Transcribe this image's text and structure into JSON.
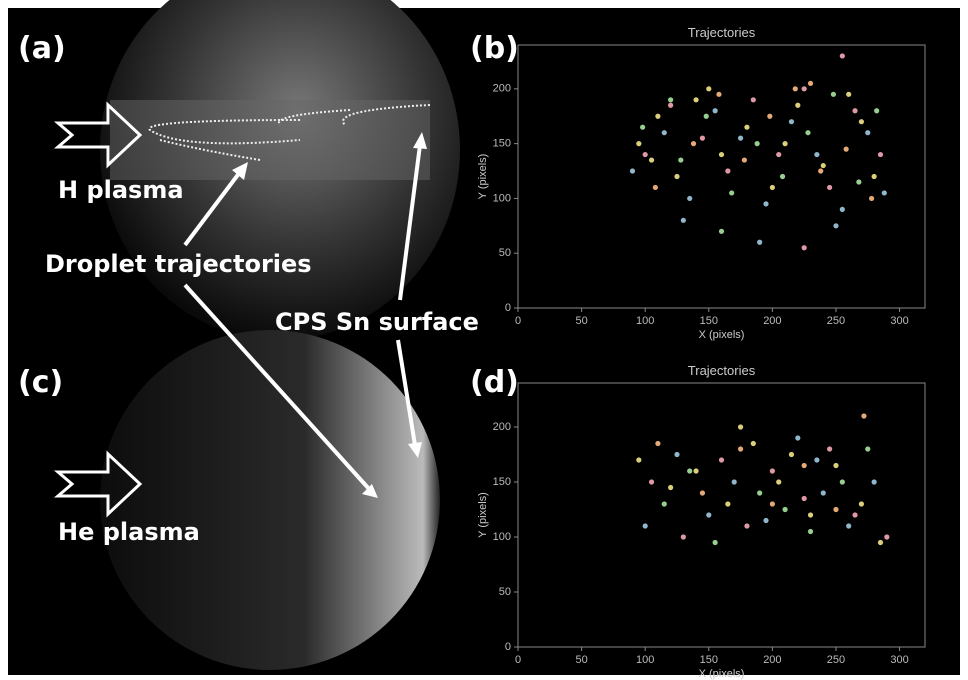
{
  "labels": {
    "a": "(a)",
    "b": "(b)",
    "c": "(c)",
    "d": "(d)",
    "h_plasma": "H plasma",
    "he_plasma": "He plasma",
    "droplet": "Droplet trajectories",
    "cps": "CPS Sn surface"
  },
  "chart_data": [
    {
      "type": "scatter",
      "title": "Trajectories",
      "x_label": "X (pixels)",
      "y_label": "Y (pixels)",
      "xlim": [
        0,
        320
      ],
      "ylim": [
        0,
        240
      ],
      "xticks": [
        0,
        50,
        100,
        150,
        200,
        250,
        300
      ],
      "yticks": [
        0,
        50,
        100,
        150,
        200
      ],
      "series": [
        {
          "color": "#f4e58a",
          "x": [
            95,
            110,
            125,
            140,
            160,
            180,
            200,
            220,
            240,
            260,
            280,
            105,
            150,
            210,
            270
          ],
          "y": [
            150,
            175,
            120,
            190,
            140,
            165,
            110,
            185,
            130,
            195,
            120,
            135,
            200,
            150,
            170
          ]
        },
        {
          "color": "#9ecae1",
          "x": [
            90,
            115,
            135,
            155,
            175,
            195,
            215,
            235,
            255,
            275,
            288,
            130,
            190,
            250
          ],
          "y": [
            125,
            160,
            100,
            180,
            155,
            95,
            170,
            140,
            90,
            160,
            105,
            80,
            60,
            75
          ]
        },
        {
          "color": "#f7a8b8",
          "x": [
            100,
            120,
            145,
            165,
            185,
            205,
            225,
            245,
            265,
            285,
            225,
            255
          ],
          "y": [
            140,
            185,
            155,
            125,
            190,
            140,
            200,
            110,
            180,
            140,
            55,
            230
          ]
        },
        {
          "color": "#a8e6a1",
          "x": [
            98,
            128,
            148,
            168,
            188,
            208,
            228,
            248,
            268,
            282,
            160,
            120
          ],
          "y": [
            165,
            135,
            175,
            105,
            150,
            120,
            160,
            195,
            115,
            180,
            70,
            190
          ]
        },
        {
          "color": "#fdbb84",
          "x": [
            108,
            138,
            158,
            178,
            198,
            218,
            238,
            258,
            278,
            230
          ],
          "y": [
            110,
            150,
            195,
            135,
            175,
            200,
            125,
            145,
            100,
            205
          ]
        }
      ]
    },
    {
      "type": "scatter",
      "title": "Trajectories",
      "x_label": "X (pixels)",
      "y_label": "Y (pixels)",
      "xlim": [
        0,
        320
      ],
      "ylim": [
        0,
        240
      ],
      "xticks": [
        0,
        50,
        100,
        150,
        200,
        250,
        300
      ],
      "yticks": [
        0,
        50,
        100,
        150,
        200
      ],
      "series": [
        {
          "color": "#f4e58a",
          "x": [
            95,
            120,
            140,
            165,
            185,
            205,
            230,
            250,
            270,
            285,
            175,
            215
          ],
          "y": [
            170,
            145,
            160,
            130,
            185,
            150,
            120,
            165,
            130,
            95,
            200,
            175
          ]
        },
        {
          "color": "#9ecae1",
          "x": [
            100,
            125,
            150,
            170,
            195,
            220,
            240,
            260,
            280,
            235
          ],
          "y": [
            110,
            175,
            120,
            150,
            115,
            190,
            140,
            110,
            150,
            170
          ]
        },
        {
          "color": "#f7a8b8",
          "x": [
            105,
            130,
            160,
            180,
            200,
            225,
            245,
            265,
            290
          ],
          "y": [
            150,
            100,
            170,
            110,
            160,
            135,
            180,
            120,
            100
          ]
        },
        {
          "color": "#a8e6a1",
          "x": [
            115,
            135,
            155,
            190,
            210,
            230,
            255,
            275
          ],
          "y": [
            130,
            160,
            95,
            140,
            125,
            105,
            150,
            180
          ]
        },
        {
          "color": "#fdbb84",
          "x": [
            110,
            145,
            175,
            200,
            225,
            250,
            272
          ],
          "y": [
            185,
            140,
            180,
            130,
            165,
            125,
            210
          ]
        }
      ]
    }
  ]
}
